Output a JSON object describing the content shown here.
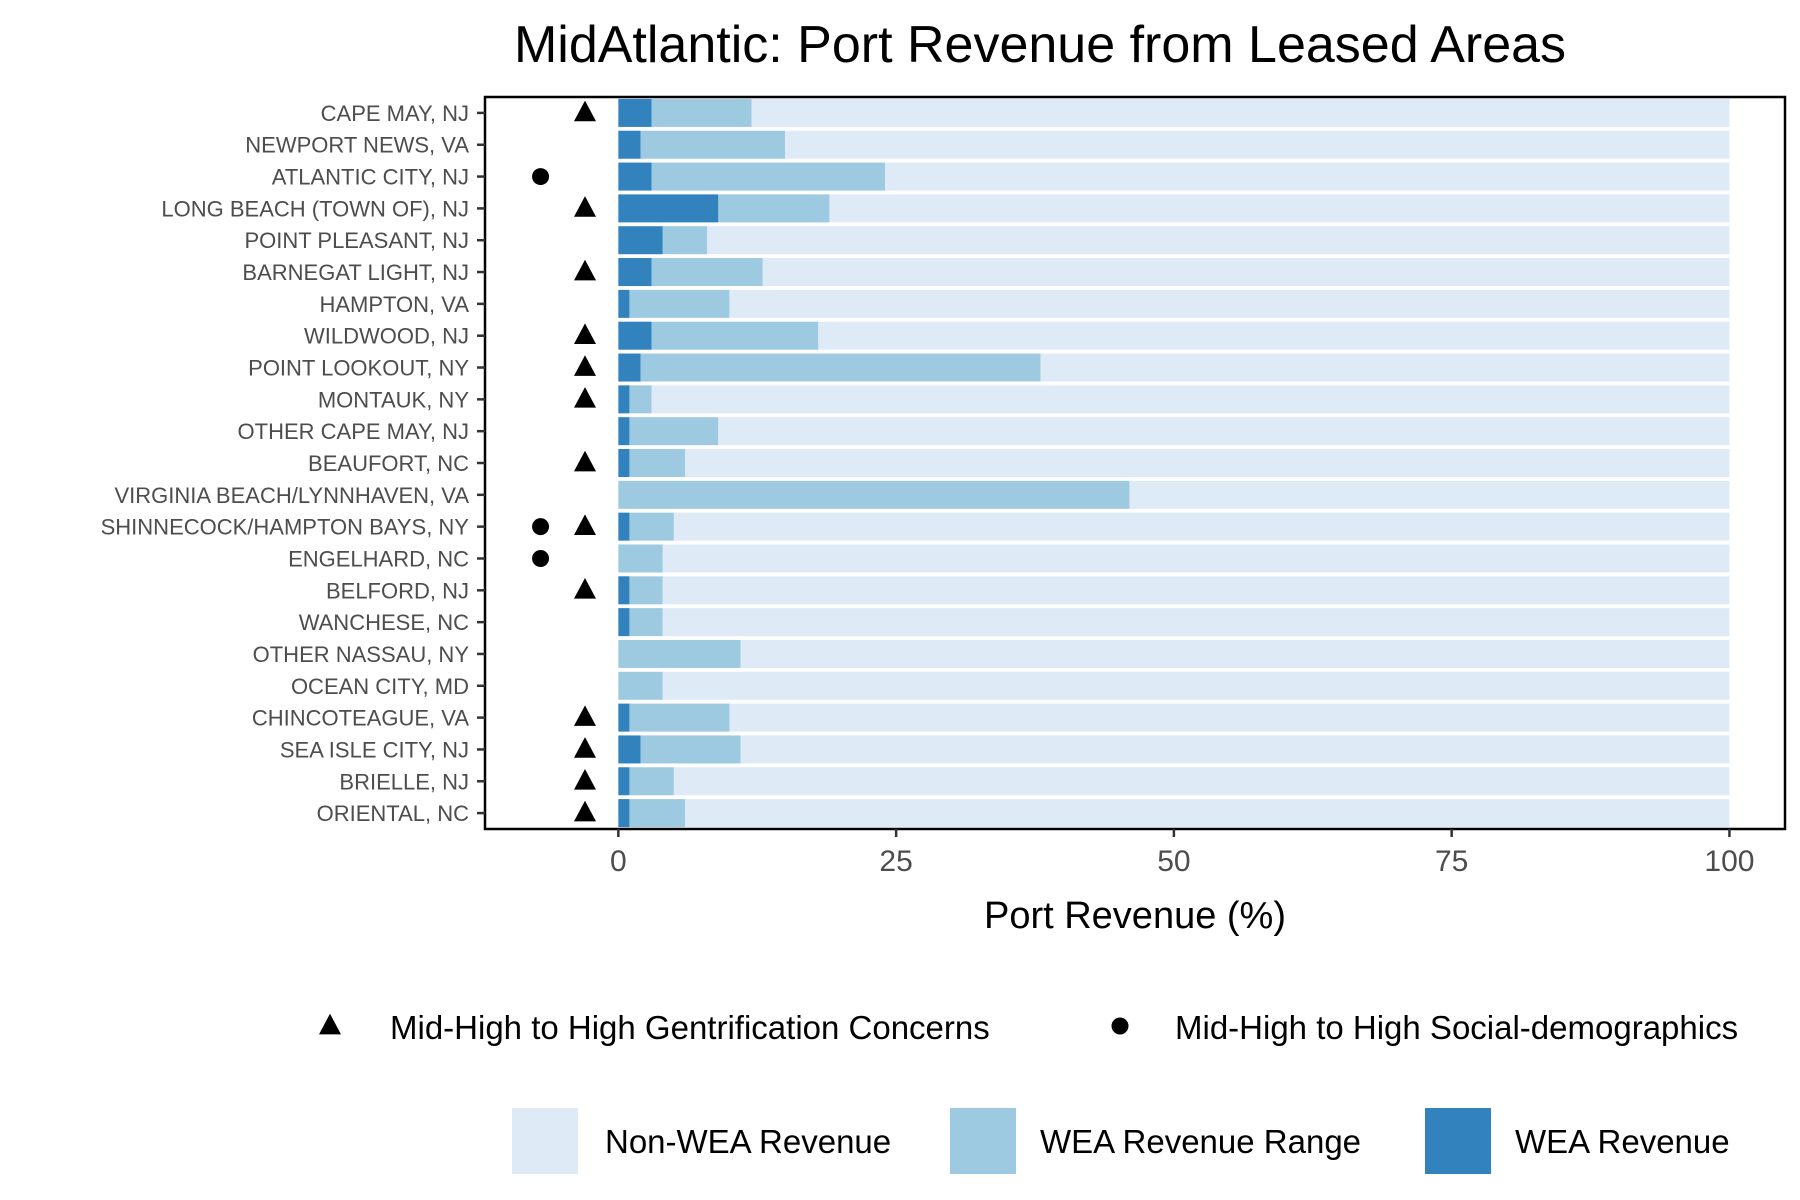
{
  "chart_data": {
    "type": "bar",
    "orientation": "horizontal",
    "stacked": true,
    "title": "MidAtlantic: Port Revenue from Leased Areas",
    "xlabel": "Port Revenue (%)",
    "ylabel": "",
    "xlim": [
      -12,
      105
    ],
    "xticks": [
      0,
      25,
      50,
      75,
      100
    ],
    "grid": false,
    "categories": [
      "CAPE MAY, NJ",
      "NEWPORT NEWS, VA",
      "ATLANTIC CITY, NJ",
      "LONG BEACH (TOWN OF), NJ",
      "POINT PLEASANT, NJ",
      "BARNEGAT LIGHT, NJ",
      "HAMPTON, VA",
      "WILDWOOD, NJ",
      "POINT LOOKOUT, NY",
      "MONTAUK, NY",
      "OTHER CAPE MAY, NJ",
      "BEAUFORT, NC",
      "VIRGINIA BEACH/LYNNHAVEN, VA",
      "SHINNECOCK/HAMPTON BAYS, NY",
      "ENGELHARD, NC",
      "BELFORD, NJ",
      "WANCHESE, NC",
      "OTHER NASSAU, NY",
      "OCEAN CITY, MD",
      "CHINCOTEAGUE, VA",
      "SEA ISLE CITY, NJ",
      "BRIELLE, NJ",
      "ORIENTAL, NC"
    ],
    "series": [
      {
        "name": "WEA Revenue",
        "color": "#3182bd",
        "values": [
          3,
          2,
          3,
          9,
          4,
          3,
          1,
          3,
          2,
          1,
          1,
          1,
          0,
          1,
          0,
          1,
          1,
          0,
          0,
          1,
          2,
          1,
          1
        ]
      },
      {
        "name": "WEA Revenue Range",
        "color": "#9ecae1",
        "values": [
          9,
          13,
          21,
          10,
          4,
          10,
          9,
          15,
          36,
          2,
          8,
          5,
          46,
          4,
          4,
          3,
          3,
          11,
          4,
          9,
          9,
          4,
          5
        ]
      },
      {
        "name": "Non-WEA Revenue",
        "color": "#deebf7",
        "values": [
          88,
          85,
          76,
          81,
          92,
          87,
          90,
          82,
          62,
          97,
          91,
          94,
          54,
          95,
          96,
          96,
          96,
          89,
          96,
          90,
          89,
          95,
          94
        ]
      }
    ],
    "markers": [
      {
        "name": "Mid-High to High Gentrification Concerns",
        "shape": "triangle",
        "x": -3,
        "categories": [
          "CAPE MAY, NJ",
          "LONG BEACH (TOWN OF), NJ",
          "BARNEGAT LIGHT, NJ",
          "WILDWOOD, NJ",
          "POINT LOOKOUT, NY",
          "MONTAUK, NY",
          "BEAUFORT, NC",
          "SHINNECOCK/HAMPTON BAYS, NY",
          "BELFORD, NJ",
          "CHINCOTEAGUE, VA",
          "SEA ISLE CITY, NJ",
          "BRIELLE, NJ",
          "ORIENTAL, NC"
        ]
      },
      {
        "name": "Mid-High to High Social-demographics",
        "shape": "circle",
        "x": -7,
        "categories": [
          "ATLANTIC CITY, NJ",
          "SHINNECOCK/HAMPTON BAYS, NY",
          "ENGELHARD, NC"
        ]
      }
    ],
    "legend_placement": "bottom",
    "marker_legend": [
      {
        "label": "Mid-High to High Gentrification Concerns",
        "shape": "triangle"
      },
      {
        "label": "Mid-High to High Social-demographics",
        "shape": "circle"
      }
    ],
    "fill_legend": [
      {
        "label": "Non-WEA Revenue",
        "color": "#deebf7"
      },
      {
        "label": "WEA Revenue Range",
        "color": "#9ecae1"
      },
      {
        "label": "WEA Revenue",
        "color": "#3182bd"
      }
    ]
  }
}
